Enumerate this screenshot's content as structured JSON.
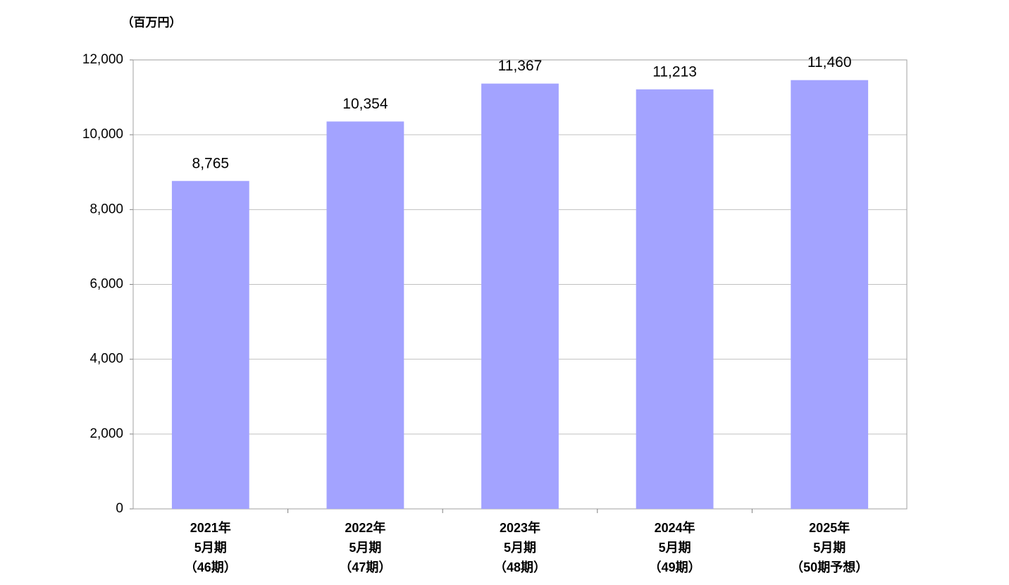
{
  "chart_data": {
    "type": "bar",
    "y_unit_label": "（百万円）",
    "categories": [
      [
        "2021年",
        "5月期",
        "（46期）"
      ],
      [
        "2022年",
        "5月期",
        "（47期）"
      ],
      [
        "2023年",
        "5月期",
        "（48期）"
      ],
      [
        "2024年",
        "5月期",
        "（49期）"
      ],
      [
        "2025年",
        "5月期",
        "（50期予想）"
      ]
    ],
    "values": [
      8765,
      10354,
      11367,
      11213,
      11460
    ],
    "value_labels": [
      "8,765",
      "10,354",
      "11,367",
      "11,213",
      "11,460"
    ],
    "color": "#a3a3ff",
    "ylim": [
      0,
      12000
    ],
    "yticks": [
      0,
      {
        "value": 2000,
        "label": "2,000"
      },
      {
        "value": 4000,
        "label": "4,000"
      },
      {
        "value": 6000,
        "label": "6,000"
      },
      {
        "value": 8000,
        "label": "8,000"
      },
      {
        "value": 10000,
        "label": "10,000"
      },
      {
        "value": 12000,
        "label": "12,000"
      }
    ],
    "grid": true
  }
}
